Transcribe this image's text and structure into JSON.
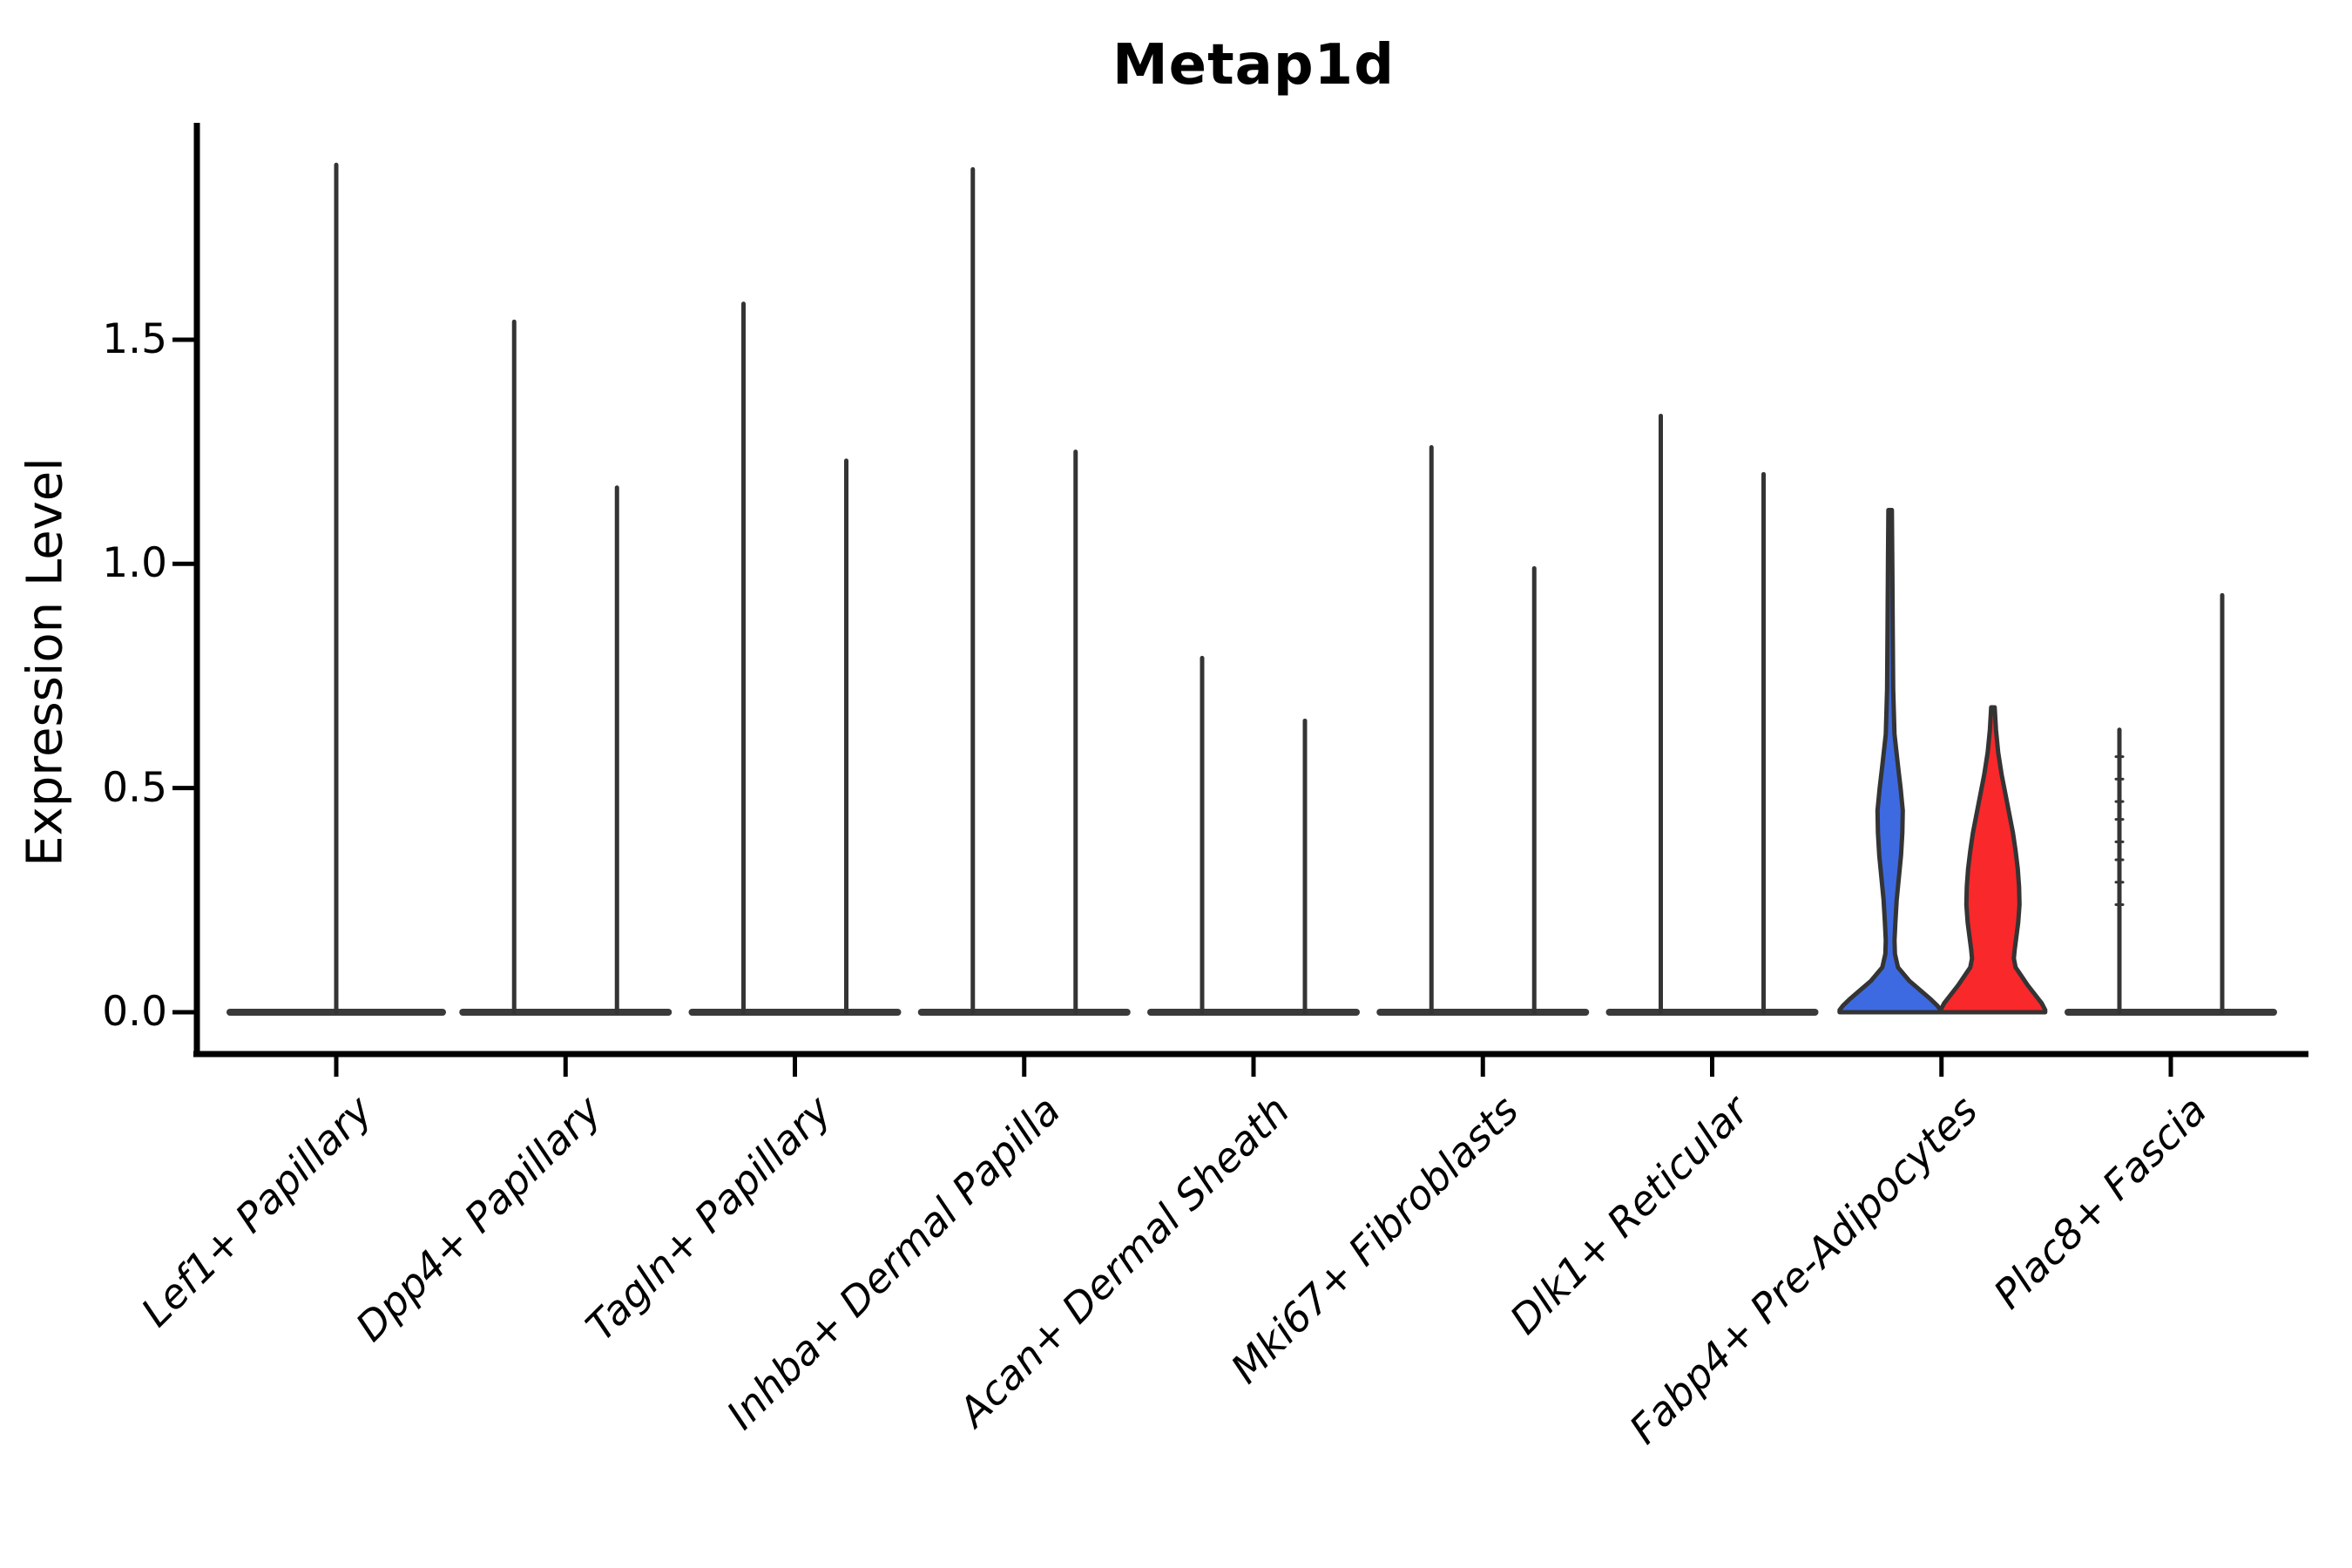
{
  "chart_data": {
    "type": "violin",
    "title": "Metap1d",
    "ylabel": "Expression Level",
    "xlabel": "",
    "yticks": [
      0.0,
      0.5,
      1.0,
      1.5
    ],
    "ytick_labels": [
      "0.0",
      "0.5",
      "1.0",
      "1.5"
    ],
    "ylim": [
      -0.09,
      1.98
    ],
    "grid": false,
    "legend": "none",
    "groups_per_category": 2,
    "categories": [
      {
        "label": "Lef1+ Papillary",
        "violins": [
          {
            "max_expression": 1.89,
            "color": null,
            "single": true
          }
        ]
      },
      {
        "label": "Dpp4+ Papillary",
        "violins": [
          {
            "max_expression": 1.54,
            "color": null
          },
          {
            "max_expression": 1.17,
            "color": null
          }
        ]
      },
      {
        "label": "Tagln+ Papillary",
        "violins": [
          {
            "max_expression": 1.58,
            "color": null
          },
          {
            "max_expression": 1.23,
            "color": null
          }
        ]
      },
      {
        "label": "Inhba+ Dermal Papilla",
        "violins": [
          {
            "max_expression": 1.88,
            "color": null
          },
          {
            "max_expression": 1.25,
            "color": null
          }
        ]
      },
      {
        "label": "Acan+ Dermal Sheath",
        "violins": [
          {
            "max_expression": 0.79,
            "color": null
          },
          {
            "max_expression": 0.65,
            "color": null
          }
        ]
      },
      {
        "label": "Mki67+ Fibroblasts",
        "violins": [
          {
            "max_expression": 1.26,
            "color": null
          },
          {
            "max_expression": 0.99,
            "color": null
          }
        ]
      },
      {
        "label": "Dlk1+ Reticular",
        "violins": [
          {
            "max_expression": 1.33,
            "color": null
          },
          {
            "max_expression": 1.2,
            "color": null
          }
        ]
      },
      {
        "label": "Fabp4+ Pre-Adipocytes",
        "violins": [
          {
            "max_expression": 1.12,
            "color": "#3E6AE1",
            "shape": "blue_profile"
          },
          {
            "max_expression": 0.68,
            "color": "#F8282B",
            "shape": "red_profile"
          }
        ]
      },
      {
        "label": "Plac8+ Fascia",
        "violins": [
          {
            "max_expression": 0.63,
            "color": null,
            "jitter": [
              0.24,
              0.29,
              0.34,
              0.38,
              0.43,
              0.47,
              0.52,
              0.57
            ]
          },
          {
            "max_expression": 0.93,
            "color": null
          }
        ]
      }
    ],
    "profiles": {
      "blue_profile": [
        [
          1.12,
          2
        ],
        [
          1.0,
          2.5
        ],
        [
          0.85,
          3
        ],
        [
          0.72,
          3.5
        ],
        [
          0.62,
          5
        ],
        [
          0.55,
          9
        ],
        [
          0.5,
          12
        ],
        [
          0.45,
          14.5
        ],
        [
          0.4,
          14
        ],
        [
          0.35,
          12.5
        ],
        [
          0.3,
          10
        ],
        [
          0.25,
          7.5
        ],
        [
          0.2,
          6
        ],
        [
          0.16,
          5
        ],
        [
          0.13,
          5.5
        ],
        [
          0.1,
          9
        ],
        [
          0.07,
          22
        ],
        [
          0.05,
          34
        ],
        [
          0.03,
          46
        ],
        [
          0.015,
          54
        ],
        [
          0.005,
          58
        ],
        [
          0,
          58
        ]
      ],
      "red_profile": [
        [
          0.68,
          2
        ],
        [
          0.63,
          3.5
        ],
        [
          0.58,
          6
        ],
        [
          0.53,
          10
        ],
        [
          0.48,
          15
        ],
        [
          0.44,
          19
        ],
        [
          0.4,
          23
        ],
        [
          0.36,
          26
        ],
        [
          0.32,
          28.5
        ],
        [
          0.28,
          30
        ],
        [
          0.24,
          30.5
        ],
        [
          0.2,
          29
        ],
        [
          0.17,
          27
        ],
        [
          0.14,
          25
        ],
        [
          0.12,
          24
        ],
        [
          0.1,
          26
        ],
        [
          0.08,
          33
        ],
        [
          0.06,
          40
        ],
        [
          0.04,
          48
        ],
        [
          0.02,
          56
        ],
        [
          0.005,
          60
        ],
        [
          0,
          60
        ]
      ]
    },
    "colors": {
      "violin_outline": "#343434",
      "base_bar": "#3a3a3a",
      "spine": "#000000",
      "highlight_blue": "#3E6AE1",
      "highlight_red": "#F8282B"
    }
  }
}
